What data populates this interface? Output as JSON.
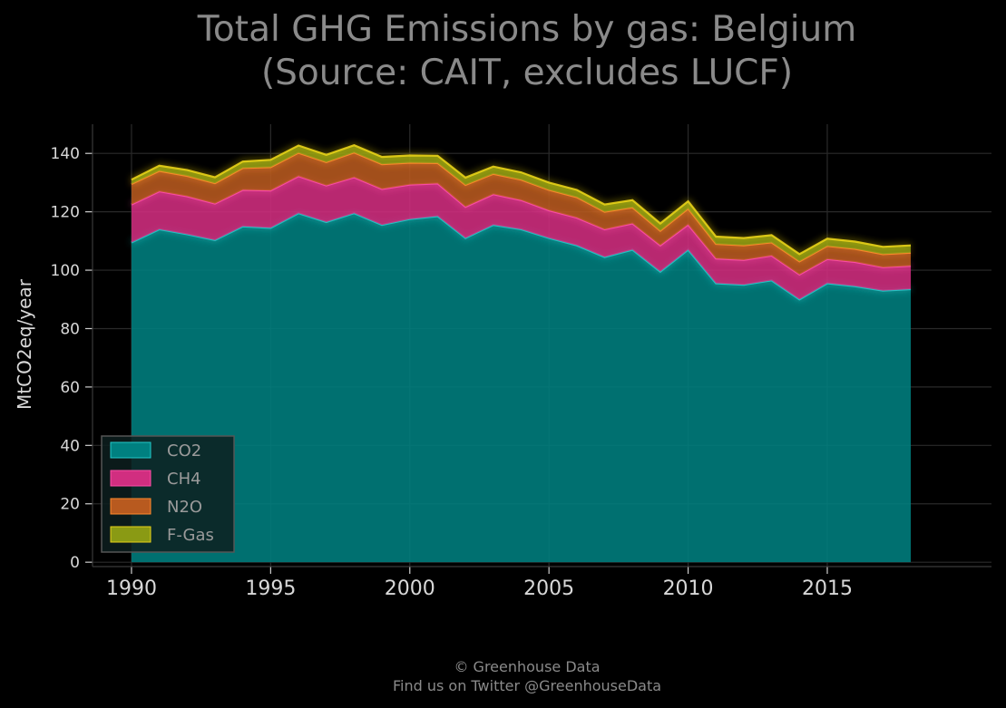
{
  "chart_data": {
    "type": "area",
    "stacked": true,
    "title": "Total GHG Emissions by gas: Belgium",
    "subtitle": "(Source: CAIT, excludes LUCF)",
    "xlabel": "",
    "ylabel": "MtCO2eq/year",
    "xlim": [
      1988.6,
      2020.9
    ],
    "ylim": [
      -1.5,
      150
    ],
    "grid": true,
    "legend_position": "bottom-left",
    "x": [
      1990,
      1991,
      1992,
      1993,
      1994,
      1995,
      1996,
      1997,
      1998,
      1999,
      2000,
      2001,
      2002,
      2003,
      2004,
      2005,
      2006,
      2007,
      2008,
      2009,
      2010,
      2011,
      2012,
      2013,
      2014,
      2015,
      2016,
      2017,
      2018
    ],
    "x_ticks": [
      "1990",
      "1995",
      "2000",
      "2005",
      "2010",
      "2015"
    ],
    "y_ticks": [
      "0",
      "20",
      "40",
      "60",
      "80",
      "100",
      "120",
      "140"
    ],
    "series": [
      {
        "name": "CO2",
        "color": "#008080",
        "values": [
          109.5,
          114,
          112.3,
          110.3,
          115,
          114.5,
          119.5,
          116.5,
          119.5,
          115.5,
          117.5,
          118.5,
          111,
          115.5,
          114,
          111,
          108.5,
          104.5,
          107,
          99.5,
          107,
          95.5,
          95,
          96.5,
          90,
          95.5,
          94.5,
          93,
          93.5
        ]
      },
      {
        "name": "CH4",
        "color": "#d12e80",
        "values": [
          13,
          13,
          13,
          12.5,
          12.5,
          12.8,
          12.7,
          12.5,
          12.3,
          12.3,
          11.8,
          11.2,
          10.7,
          10.5,
          10,
          9.5,
          9.5,
          9.5,
          9,
          9,
          8.6,
          8.5,
          8.5,
          8.5,
          8.5,
          8.3,
          8.3,
          8,
          8
        ]
      },
      {
        "name": "N2O",
        "color": "#b85a1f",
        "values": [
          7,
          7,
          7,
          7,
          7.5,
          8,
          8,
          8,
          8.5,
          8.5,
          7.5,
          7,
          7.5,
          7,
          7,
          7,
          7,
          6,
          5.5,
          5,
          5.5,
          5,
          5,
          4.5,
          4.5,
          4.5,
          4.5,
          4.5,
          4.5
        ]
      },
      {
        "name": "F-Gas",
        "color": "#8a9a14",
        "values": [
          1.5,
          1.8,
          2,
          2,
          2.2,
          2.5,
          2.5,
          2.5,
          2.5,
          2.5,
          2.5,
          2.5,
          2.5,
          2.5,
          2.5,
          2.5,
          2.5,
          2.5,
          2.5,
          2.5,
          2.5,
          2.5,
          2.5,
          2.5,
          2.5,
          2.5,
          2.5,
          2.5,
          2.5
        ]
      }
    ]
  },
  "footer": {
    "line1": "© Greenhouse Data",
    "line2": "Find us on Twitter @GreenhouseData"
  }
}
